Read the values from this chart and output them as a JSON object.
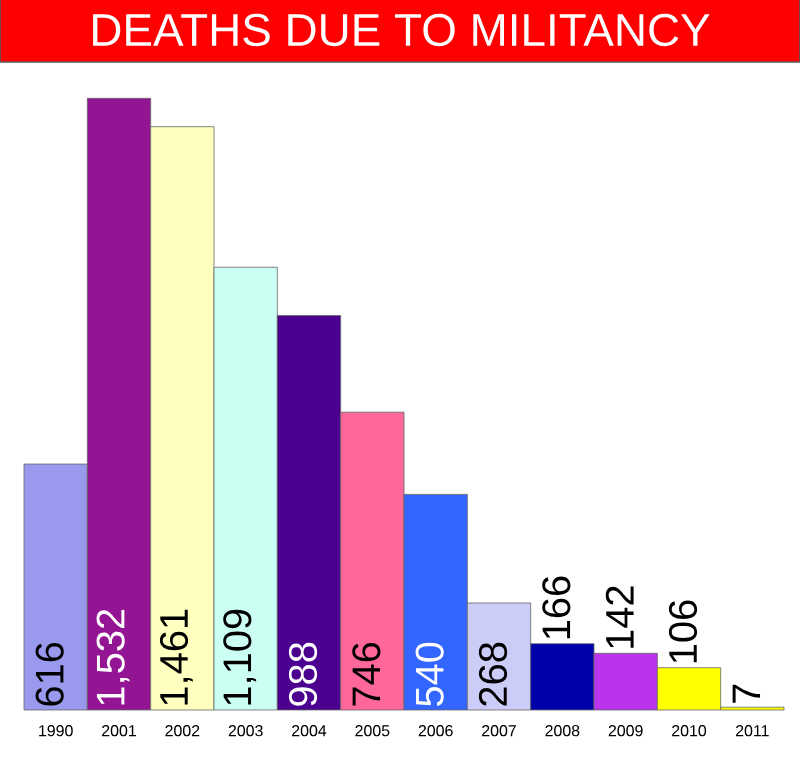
{
  "chart_data": {
    "type": "bar",
    "title": "DEATHS DUE TO MILITANCY",
    "categories": [
      "1990",
      "2001",
      "2002",
      "2003",
      "2004",
      "2005",
      "2006",
      "2007",
      "2008",
      "2009",
      "2010",
      "2011"
    ],
    "values": [
      616,
      1532,
      1461,
      1109,
      988,
      746,
      540,
      268,
      166,
      142,
      106,
      7
    ],
    "value_labels": [
      "616",
      "1,532",
      "1,461",
      "1,109",
      "988",
      "746",
      "540",
      "268",
      "166",
      "142",
      "106",
      "7"
    ],
    "colors": [
      "#9999ee",
      "#931593",
      "#ffffc0",
      "#ccfff4",
      "#4b0090",
      "#ff6699",
      "#3366ff",
      "#ccccf8",
      "#0000aa",
      "#bb33ee",
      "#ffff00",
      "#ffff00"
    ]
  }
}
